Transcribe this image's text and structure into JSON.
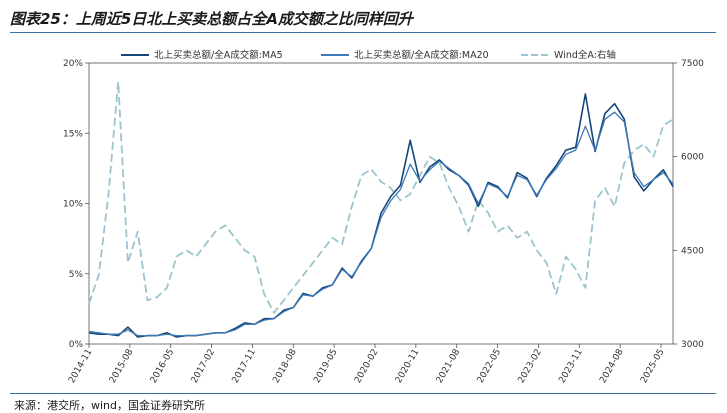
{
  "title": "图表25：上周近5日北上买卖总额占全A成交额之比同样回升",
  "source": "来源：港交所，wind，国金证券研究所",
  "chart_data": {
    "type": "line",
    "title": "图表25：上周近5日北上买卖总额占全A成交额之比同样回升",
    "xlabel": "",
    "ylabel": "",
    "y_left_range": [
      0,
      20
    ],
    "y_left_ticks": [
      "0%",
      "5%",
      "10%",
      "15%",
      "20%"
    ],
    "y_right_range": [
      3000,
      7500
    ],
    "y_right_ticks": [
      "3000",
      "4500",
      "6000",
      "7500"
    ],
    "x_ticks": [
      "2014-11",
      "2015-08",
      "2016-05",
      "2017-02",
      "2017-11",
      "2018-08",
      "2019-05",
      "2020-02",
      "2020-11",
      "2021-08",
      "2022-05",
      "2023-02",
      "2023-11",
      "2024-08",
      "2025-05"
    ],
    "legend_position": "top",
    "grid": false,
    "series": [
      {
        "name": "北上买卖总额/全A成交额:MA5",
        "axis": "left",
        "color": "#15467a",
        "style": "solid",
        "values": [
          0.8,
          0.7,
          0.7,
          0.6,
          1.2,
          0.5,
          0.6,
          0.6,
          0.8,
          0.5,
          0.6,
          0.6,
          0.7,
          0.8,
          0.8,
          1.1,
          1.5,
          1.4,
          1.8,
          1.8,
          2.4,
          2.6,
          3.6,
          3.4,
          4.0,
          4.2,
          5.4,
          4.7,
          5.9,
          6.8,
          9.3,
          10.5,
          11.3,
          14.5,
          11.5,
          12.6,
          13.1,
          12.4,
          12.0,
          11.3,
          9.8,
          11.5,
          11.2,
          10.4,
          12.2,
          11.8,
          10.5,
          11.8,
          12.7,
          13.8,
          14.0,
          17.8,
          13.7,
          16.4,
          17.1,
          16.0,
          11.9,
          10.9,
          11.7,
          12.4,
          11.2
        ]
      },
      {
        "name": "北上买卖总额/全A成交额:MA20",
        "axis": "left",
        "color": "#3d7ab8",
        "style": "solid",
        "values": [
          0.9,
          0.8,
          0.7,
          0.7,
          1.0,
          0.6,
          0.6,
          0.6,
          0.7,
          0.6,
          0.6,
          0.6,
          0.7,
          0.8,
          0.8,
          1.0,
          1.4,
          1.4,
          1.7,
          1.8,
          2.3,
          2.6,
          3.5,
          3.4,
          3.9,
          4.2,
          5.3,
          4.8,
          5.8,
          6.8,
          9.0,
          10.2,
          11.0,
          12.8,
          11.6,
          12.4,
          13.0,
          12.5,
          12.0,
          11.4,
          10.0,
          11.4,
          11.1,
          10.5,
          12.0,
          11.7,
          10.6,
          11.7,
          12.5,
          13.5,
          13.8,
          15.5,
          13.8,
          16.0,
          16.5,
          15.8,
          12.2,
          11.2,
          11.7,
          12.2,
          11.4
        ]
      },
      {
        "name": "Wind全A:右轴",
        "axis": "right",
        "color": "#9cc3cf",
        "style": "dashed",
        "values": [
          3650,
          4100,
          5400,
          7200,
          4300,
          4800,
          3700,
          3750,
          3900,
          4400,
          4500,
          4400,
          4600,
          4800,
          4900,
          4700,
          4500,
          4400,
          3800,
          3500,
          3700,
          3900,
          4100,
          4300,
          4500,
          4700,
          4600,
          5200,
          5700,
          5800,
          5600,
          5500,
          5300,
          5400,
          5700,
          6000,
          5900,
          5500,
          5200,
          4800,
          5300,
          5100,
          4800,
          4900,
          4700,
          4800,
          4500,
          4300,
          3800,
          4400,
          4200,
          3900,
          5300,
          5500,
          5200,
          5900,
          6100,
          6200,
          6000,
          6500,
          6600
        ]
      }
    ]
  }
}
